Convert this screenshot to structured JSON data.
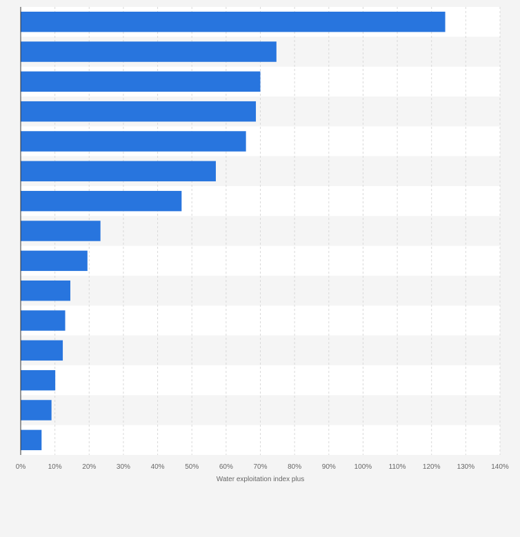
{
  "chart_data": {
    "type": "bar",
    "orientation": "horizontal",
    "title": "",
    "xlabel": "Water exploitation index plus",
    "ylabel": "",
    "xlim": [
      0,
      140
    ],
    "x_ticks": [
      "0%",
      "10%",
      "20%",
      "30%",
      "40%",
      "50%",
      "60%",
      "70%",
      "80%",
      "90%",
      "100%",
      "110%",
      "120%",
      "130%",
      "140%"
    ],
    "grid": true,
    "legend": "none",
    "categories": [
      "",
      "",
      "",
      "",
      "",
      "",
      "",
      "",
      "",
      "",
      "",
      "",
      "",
      "",
      ""
    ],
    "values": [
      124,
      74.7,
      70,
      68.7,
      65.8,
      57,
      47,
      23.3,
      19.5,
      14.5,
      13,
      12.3,
      10.1,
      9,
      6.1
    ],
    "bar_color": "#2875de"
  }
}
